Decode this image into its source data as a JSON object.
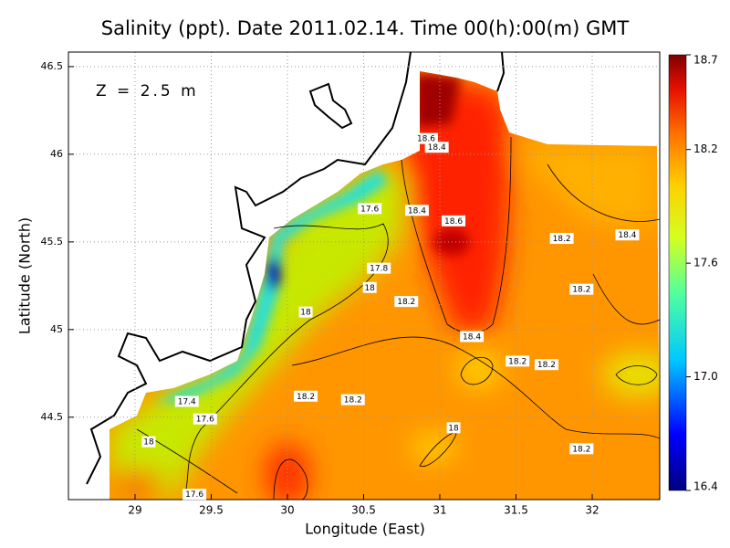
{
  "chart_data": {
    "type": "contour",
    "title": "Salinity (ppt). Date 2011.02.14. Time 00(h):00(m) GMT",
    "annotation": "Z = 2.5 m",
    "x_label": "Longitude (East)",
    "y_label": "Latitude (North)",
    "xlim": [
      28.563,
      32.443
    ],
    "xticks": [
      29,
      29.5,
      30,
      30.5,
      31,
      31.5,
      32
    ],
    "ylim": [
      44.03,
      46.583
    ],
    "yticks": [
      44.5,
      45,
      45.5,
      46,
      46.5
    ],
    "grid": true,
    "colorbar": {
      "lim": [
        16.4,
        18.7
      ],
      "ticks": [
        16.4,
        {
          "value": 17,
          "label": "17.0"
        },
        17.6,
        18.2,
        18.7
      ]
    },
    "contour_labels": [
      {
        "value": 18.6,
        "lon": 30.91,
        "lat": 46.09
      },
      {
        "value": 18.4,
        "lon": 30.98,
        "lat": 46.04
      },
      {
        "value": 17.6,
        "lon": 30.54,
        "lat": 45.69
      },
      {
        "value": 18.4,
        "lon": 30.85,
        "lat": 45.68
      },
      {
        "value": 18.6,
        "lon": 31.09,
        "lat": 45.62
      },
      {
        "value": 18.2,
        "lon": 31.8,
        "lat": 45.52
      },
      {
        "value": 18.4,
        "lon": 32.23,
        "lat": 45.54
      },
      {
        "value": 17.8,
        "lon": 30.6,
        "lat": 45.35
      },
      {
        "value": 18,
        "lon": 30.54,
        "lat": 45.24
      },
      {
        "value": 18.2,
        "lon": 31.93,
        "lat": 45.23
      },
      {
        "value": 18.2,
        "lon": 30.78,
        "lat": 45.16
      },
      {
        "value": 18,
        "lon": 30.12,
        "lat": 45.1
      },
      {
        "value": 18.4,
        "lon": 31.21,
        "lat": 44.96
      },
      {
        "value": 18.2,
        "lon": 31.51,
        "lat": 44.82
      },
      {
        "value": 18.2,
        "lon": 31.7,
        "lat": 44.8
      },
      {
        "value": 17.4,
        "lon": 29.34,
        "lat": 44.59
      },
      {
        "value": 18.2,
        "lon": 30.12,
        "lat": 44.62
      },
      {
        "value": 18.2,
        "lon": 30.43,
        "lat": 44.6
      },
      {
        "value": 17.6,
        "lon": 29.46,
        "lat": 44.49
      },
      {
        "value": 18,
        "lon": 31.09,
        "lat": 44.44
      },
      {
        "value": 18,
        "lon": 29.09,
        "lat": 44.36
      },
      {
        "value": 18.2,
        "lon": 31.93,
        "lat": 44.32
      },
      {
        "value": 17.6,
        "lon": 29.39,
        "lat": 44.06
      }
    ]
  }
}
